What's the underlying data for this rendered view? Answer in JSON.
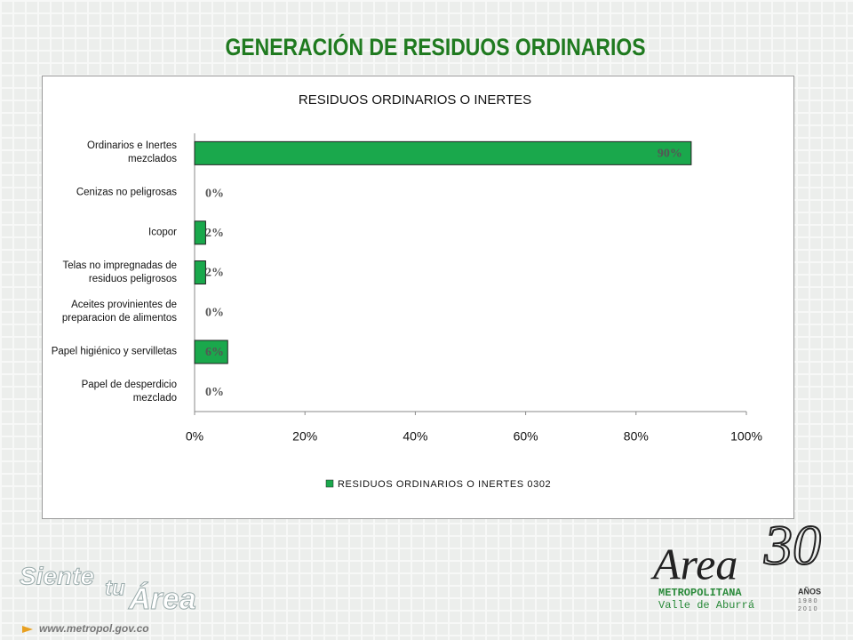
{
  "slide": {
    "title": "GENERACIÓN DE RESIDUOS ORDINARIOS",
    "footer": {
      "siente": "Siente",
      "tu": "tu",
      "area": "Área",
      "url": "www.metropol.gov.co",
      "logo_area": "Area",
      "logo_30": "30",
      "logo_metropolitana": "METROPOLITANA",
      "logo_valle": "Valle de Aburrá",
      "logo_anos": "AÑOS",
      "logo_year1": "1980",
      "logo_year2": "2010"
    }
  },
  "chart_data": {
    "type": "barh",
    "title": "RESIDUOS ORDINARIOS O INERTES",
    "categories": [
      "Ordinarios e Inertes mezclados",
      "Cenizas no peligrosas",
      "Icopor",
      "Telas no impregnadas de residuos peligrosos",
      "Aceites provinientes de preparacion de alimentos",
      "Papel higiénico y servilletas",
      "Papel de desperdicio mezclado"
    ],
    "series": [
      {
        "name": "RESIDUOS ORDINARIOS O INERTES  0302",
        "color": "#1aa84c",
        "values": [
          90,
          0,
          2,
          2,
          0,
          6,
          0
        ],
        "value_labels": [
          "90%",
          "0%",
          "2%",
          "2%",
          "0%",
          "6%",
          "0%"
        ]
      }
    ],
    "xlim": [
      0,
      100
    ],
    "xticks": [
      {
        "value": 0,
        "label": "0%"
      },
      {
        "value": 20,
        "label": "20%"
      },
      {
        "value": 40,
        "label": "40%"
      },
      {
        "value": 60,
        "label": "60%"
      },
      {
        "value": 80,
        "label": "80%"
      },
      {
        "value": 100,
        "label": "100%"
      }
    ],
    "legend": "bottom"
  }
}
